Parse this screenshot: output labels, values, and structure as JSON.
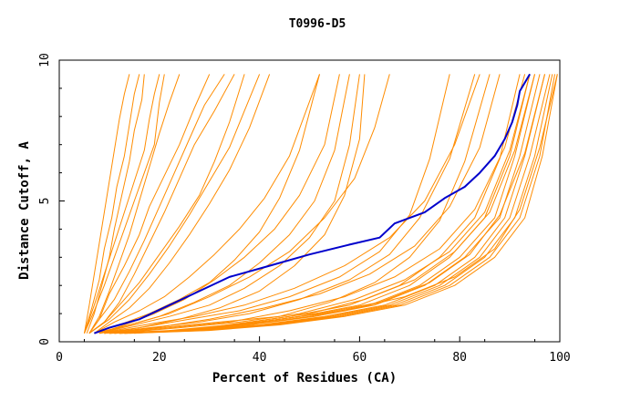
{
  "chart_data": {
    "type": "line",
    "title": "T0996-D5",
    "xlabel": "Percent of Residues (CA)",
    "ylabel": "Distance Cutoff, A",
    "xlim": [
      0,
      100
    ],
    "ylim": [
      0,
      10
    ],
    "xticks": [
      0,
      20,
      40,
      60,
      80,
      100
    ],
    "yticks": [
      0,
      5,
      10
    ],
    "grid": false,
    "legend": "none",
    "colors": {
      "highlight": "#0000cc",
      "others": "#ff8c00",
      "axis": "#000000"
    },
    "highlight_series": {
      "x": [
        7,
        10,
        16,
        22,
        28,
        34,
        42,
        50,
        58,
        64,
        67,
        73,
        77,
        81,
        84,
        87,
        89,
        90.5,
        91.5,
        92,
        93,
        94
      ],
      "y": [
        0.3,
        0.5,
        0.8,
        1.3,
        1.8,
        2.3,
        2.7,
        3.1,
        3.45,
        3.7,
        4.2,
        4.6,
        5.1,
        5.5,
        6.0,
        6.6,
        7.2,
        7.8,
        8.4,
        8.9,
        9.2,
        9.5
      ]
    },
    "series": [
      {
        "x": [
          5,
          6.5,
          8,
          9,
          10.5,
          11.5,
          13,
          14,
          15,
          16
        ],
        "y": [
          0.3,
          1.2,
          2.2,
          3.3,
          4.4,
          5.5,
          6.6,
          7.7,
          8.8,
          9.5
        ]
      },
      {
        "x": [
          5.5,
          7,
          8.5,
          10,
          11,
          12.5,
          14,
          15,
          16.5,
          17
        ],
        "y": [
          0.3,
          1.0,
          2.0,
          3.0,
          4.0,
          5.2,
          6.4,
          7.5,
          8.6,
          9.5
        ]
      },
      {
        "x": [
          5,
          7,
          9,
          11,
          13,
          15,
          17,
          19,
          20,
          21
        ],
        "y": [
          0.3,
          1.1,
          2.0,
          3.0,
          4.0,
          5.0,
          6.0,
          7.0,
          8.5,
          9.5
        ]
      },
      {
        "x": [
          6,
          8,
          10,
          12,
          14,
          16,
          18,
          20,
          22,
          24
        ],
        "y": [
          0.3,
          0.9,
          1.8,
          2.8,
          3.8,
          5.0,
          6.2,
          7.4,
          8.5,
          9.5
        ]
      },
      {
        "x": [
          6,
          8,
          10,
          13,
          16,
          18,
          21,
          24,
          27,
          30
        ],
        "y": [
          0.3,
          0.8,
          1.7,
          2.7,
          3.8,
          4.8,
          5.9,
          7.0,
          8.3,
          9.5
        ]
      },
      {
        "x": [
          6,
          8,
          11,
          14,
          17,
          20,
          23,
          26,
          29,
          33
        ],
        "y": [
          0.3,
          0.8,
          1.5,
          2.5,
          3.6,
          4.8,
          6.0,
          7.2,
          8.4,
          9.5
        ]
      },
      {
        "x": [
          6,
          9,
          12,
          15,
          18,
          21,
          24,
          27,
          31,
          35
        ],
        "y": [
          0.3,
          0.7,
          1.4,
          2.4,
          3.5,
          4.6,
          5.8,
          7.0,
          8.2,
          9.5
        ]
      },
      {
        "x": [
          6,
          9,
          12,
          16,
          20,
          24,
          28,
          31,
          34,
          37
        ],
        "y": [
          0.3,
          0.7,
          1.3,
          2.1,
          3.1,
          4.1,
          5.2,
          6.4,
          7.8,
          9.5
        ]
      },
      {
        "x": [
          7,
          10,
          14,
          18,
          22,
          26,
          30,
          34,
          38,
          42
        ],
        "y": [
          0.3,
          0.7,
          1.2,
          1.9,
          2.8,
          3.8,
          4.9,
          6.1,
          7.6,
          9.5
        ]
      },
      {
        "x": [
          7,
          11,
          16,
          21,
          26,
          31,
          36,
          41,
          46,
          52
        ],
        "y": [
          0.3,
          0.7,
          1.1,
          1.6,
          2.3,
          3.1,
          4.0,
          5.1,
          6.6,
          9.5
        ]
      },
      {
        "x": [
          8,
          13,
          19,
          25,
          31,
          37,
          43,
          48,
          53,
          56
        ],
        "y": [
          0.3,
          0.6,
          1.0,
          1.5,
          2.2,
          3.0,
          4.0,
          5.2,
          7.0,
          9.5
        ]
      },
      {
        "x": [
          8,
          14,
          20,
          27,
          34,
          40,
          46,
          51,
          55,
          58
        ],
        "y": [
          0.3,
          0.6,
          0.9,
          1.4,
          2.0,
          2.8,
          3.8,
          5.0,
          6.8,
          9.5
        ]
      },
      {
        "x": [
          8,
          15,
          22,
          30,
          37,
          44,
          50,
          55,
          58,
          60
        ],
        "y": [
          0.3,
          0.6,
          0.9,
          1.3,
          1.9,
          2.7,
          3.7,
          5.0,
          7.0,
          9.5
        ]
      },
      {
        "x": [
          9,
          16,
          24,
          32,
          40,
          47,
          53,
          57,
          60,
          61
        ],
        "y": [
          0.3,
          0.5,
          0.8,
          1.2,
          1.8,
          2.7,
          3.8,
          5.2,
          7.2,
          9.5
        ]
      },
      {
        "x": [
          7,
          12,
          18,
          24,
          30,
          35,
          40,
          44,
          48,
          52
        ],
        "y": [
          0.3,
          0.6,
          1.0,
          1.5,
          2.1,
          2.9,
          3.9,
          5.1,
          6.8,
          9.5
        ]
      },
      {
        "x": [
          8,
          16,
          26,
          36,
          46,
          56,
          64,
          70,
          74,
          78
        ],
        "y": [
          0.3,
          0.5,
          0.8,
          1.1,
          1.6,
          2.3,
          3.2,
          4.5,
          6.5,
          9.5
        ]
      },
      {
        "x": [
          9,
          18,
          28,
          38,
          48,
          58,
          66,
          72,
          78,
          83
        ],
        "y": [
          0.3,
          0.5,
          0.7,
          1.0,
          1.5,
          2.2,
          3.1,
          4.4,
          6.5,
          9.5
        ]
      },
      {
        "x": [
          9,
          20,
          32,
          44,
          54,
          63,
          70,
          76,
          81,
          86
        ],
        "y": [
          0.3,
          0.5,
          0.7,
          0.9,
          1.4,
          2.1,
          3.0,
          4.3,
          6.4,
          9.5
        ]
      },
      {
        "x": [
          10,
          22,
          34,
          46,
          58,
          68,
          76,
          83,
          88,
          92
        ],
        "y": [
          0.3,
          0.4,
          0.6,
          0.9,
          1.3,
          2.0,
          3.0,
          4.4,
          6.5,
          9.5
        ]
      },
      {
        "x": [
          10,
          23,
          36,
          48,
          60,
          70,
          78,
          85,
          90,
          94
        ],
        "y": [
          0.3,
          0.4,
          0.6,
          0.9,
          1.3,
          2.0,
          3.0,
          4.4,
          6.6,
          9.5
        ]
      },
      {
        "x": [
          11,
          24,
          37,
          50,
          62,
          72,
          80,
          87,
          91,
          95
        ],
        "y": [
          0.3,
          0.4,
          0.6,
          0.9,
          1.3,
          2.0,
          3.0,
          4.4,
          6.6,
          9.5
        ]
      },
      {
        "x": [
          11,
          25,
          38,
          51,
          63,
          73,
          81,
          88,
          92,
          96
        ],
        "y": [
          0.3,
          0.4,
          0.6,
          0.9,
          1.3,
          2.0,
          3.0,
          4.4,
          6.6,
          9.5
        ]
      },
      {
        "x": [
          12,
          26,
          40,
          53,
          65,
          75,
          83,
          89,
          93,
          97
        ],
        "y": [
          0.3,
          0.4,
          0.6,
          0.9,
          1.3,
          2.0,
          3.0,
          4.4,
          6.6,
          9.5
        ]
      },
      {
        "x": [
          12,
          27,
          41,
          54,
          66,
          76,
          84,
          90,
          94,
          98
        ],
        "y": [
          0.3,
          0.4,
          0.6,
          0.9,
          1.3,
          2.0,
          3.0,
          4.4,
          6.6,
          9.5
        ]
      },
      {
        "x": [
          13,
          28,
          42,
          55,
          67,
          77,
          85,
          91,
          95,
          98.5
        ],
        "y": [
          0.3,
          0.4,
          0.6,
          0.9,
          1.3,
          2.0,
          3.0,
          4.4,
          6.6,
          9.5
        ]
      },
      {
        "x": [
          13,
          29,
          43,
          56,
          68,
          78,
          86,
          92,
          96,
          99
        ],
        "y": [
          0.3,
          0.4,
          0.6,
          0.9,
          1.3,
          2.0,
          3.0,
          4.4,
          6.6,
          9.5
        ]
      },
      {
        "x": [
          14,
          30,
          44,
          57,
          69,
          79,
          87,
          93,
          96.5,
          99.5
        ],
        "y": [
          0.3,
          0.4,
          0.6,
          0.9,
          1.3,
          2.0,
          3.0,
          4.4,
          6.6,
          9.5
        ]
      },
      {
        "x": [
          12,
          25,
          38,
          50,
          61,
          71,
          79,
          86,
          91,
          95
        ],
        "y": [
          0.3,
          0.4,
          0.7,
          1.0,
          1.5,
          2.2,
          3.2,
          4.6,
          6.8,
          9.5
        ]
      },
      {
        "x": [
          11,
          24,
          36,
          48,
          59,
          69,
          78,
          85,
          90,
          94
        ],
        "y": [
          0.3,
          0.5,
          0.7,
          1.0,
          1.5,
          2.2,
          3.2,
          4.6,
          6.8,
          9.5
        ]
      },
      {
        "x": [
          10,
          22,
          34,
          46,
          57,
          67,
          76,
          83,
          89,
          93
        ],
        "y": [
          0.3,
          0.5,
          0.7,
          1.1,
          1.6,
          2.3,
          3.3,
          4.7,
          6.9,
          9.5
        ]
      },
      {
        "x": [
          13,
          27,
          40,
          52,
          64,
          74,
          82,
          88,
          93,
          97
        ],
        "y": [
          0.3,
          0.4,
          0.7,
          1.0,
          1.4,
          2.1,
          3.1,
          4.5,
          6.7,
          9.5
        ]
      },
      {
        "x": [
          15,
          30,
          44,
          57,
          69,
          79,
          87,
          92,
          96,
          99.5
        ],
        "y": [
          0.3,
          0.5,
          0.8,
          1.1,
          1.6,
          2.3,
          3.3,
          4.7,
          6.9,
          9.5
        ]
      },
      {
        "x": [
          8,
          17,
          27,
          37,
          47,
          57,
          66,
          73,
          79,
          84
        ],
        "y": [
          0.3,
          0.6,
          0.9,
          1.3,
          1.9,
          2.7,
          3.7,
          5.0,
          7.0,
          9.5
        ]
      },
      {
        "x": [
          9,
          19,
          30,
          41,
          52,
          62,
          71,
          78,
          84,
          88
        ],
        "y": [
          0.3,
          0.5,
          0.8,
          1.2,
          1.7,
          2.4,
          3.4,
          4.8,
          6.9,
          9.5
        ]
      },
      {
        "x": [
          7,
          14,
          22,
          30,
          38,
          46,
          53,
          59,
          63,
          66
        ],
        "y": [
          0.3,
          0.6,
          1.0,
          1.6,
          2.3,
          3.2,
          4.4,
          5.8,
          7.6,
          9.5
        ]
      },
      {
        "x": [
          6,
          10,
          14,
          18,
          22,
          26,
          30,
          34,
          37,
          40
        ],
        "y": [
          0.3,
          0.8,
          1.5,
          2.4,
          3.4,
          4.5,
          5.7,
          6.9,
          8.2,
          9.5
        ]
      },
      {
        "x": [
          5,
          7,
          9,
          11,
          13,
          15,
          17,
          18,
          19,
          20
        ],
        "y": [
          0.3,
          1.3,
          2.4,
          3.5,
          4.6,
          5.7,
          6.8,
          7.9,
          8.8,
          9.5
        ]
      },
      {
        "x": [
          5,
          6,
          7,
          8,
          9,
          10,
          11,
          12,
          13,
          14
        ],
        "y": [
          0.3,
          1.3,
          2.4,
          3.5,
          4.6,
          5.7,
          6.8,
          7.9,
          8.8,
          9.5
        ]
      }
    ]
  }
}
